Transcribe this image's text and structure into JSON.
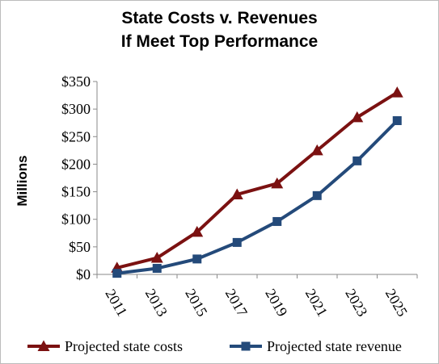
{
  "chart_data": {
    "type": "line",
    "title": [
      "State Costs v. Revenues",
      "If Meet Top Performance"
    ],
    "ylabel": "Millions",
    "xlabel": "",
    "categories": [
      "2011",
      "2013",
      "2015",
      "2017",
      "2019",
      "2021",
      "2023",
      "2025"
    ],
    "y_tick_labels": [
      "$0",
      "$50",
      "$100",
      "$150",
      "$200",
      "$250",
      "$300",
      "$350"
    ],
    "y_ticks": [
      0,
      50,
      100,
      150,
      200,
      250,
      300,
      350
    ],
    "ylim": [
      0,
      350
    ],
    "grid": false,
    "legend_position": "bottom",
    "series": [
      {
        "name": "Projected state costs",
        "values": [
          12,
          30,
          77,
          145,
          165,
          225,
          285,
          330
        ],
        "color": "#7b1111",
        "marker": "triangle"
      },
      {
        "name": "Projected state revenue",
        "values": [
          2,
          11,
          28,
          58,
          96,
          143,
          206,
          279
        ],
        "color": "#244a7a",
        "marker": "square"
      }
    ]
  }
}
